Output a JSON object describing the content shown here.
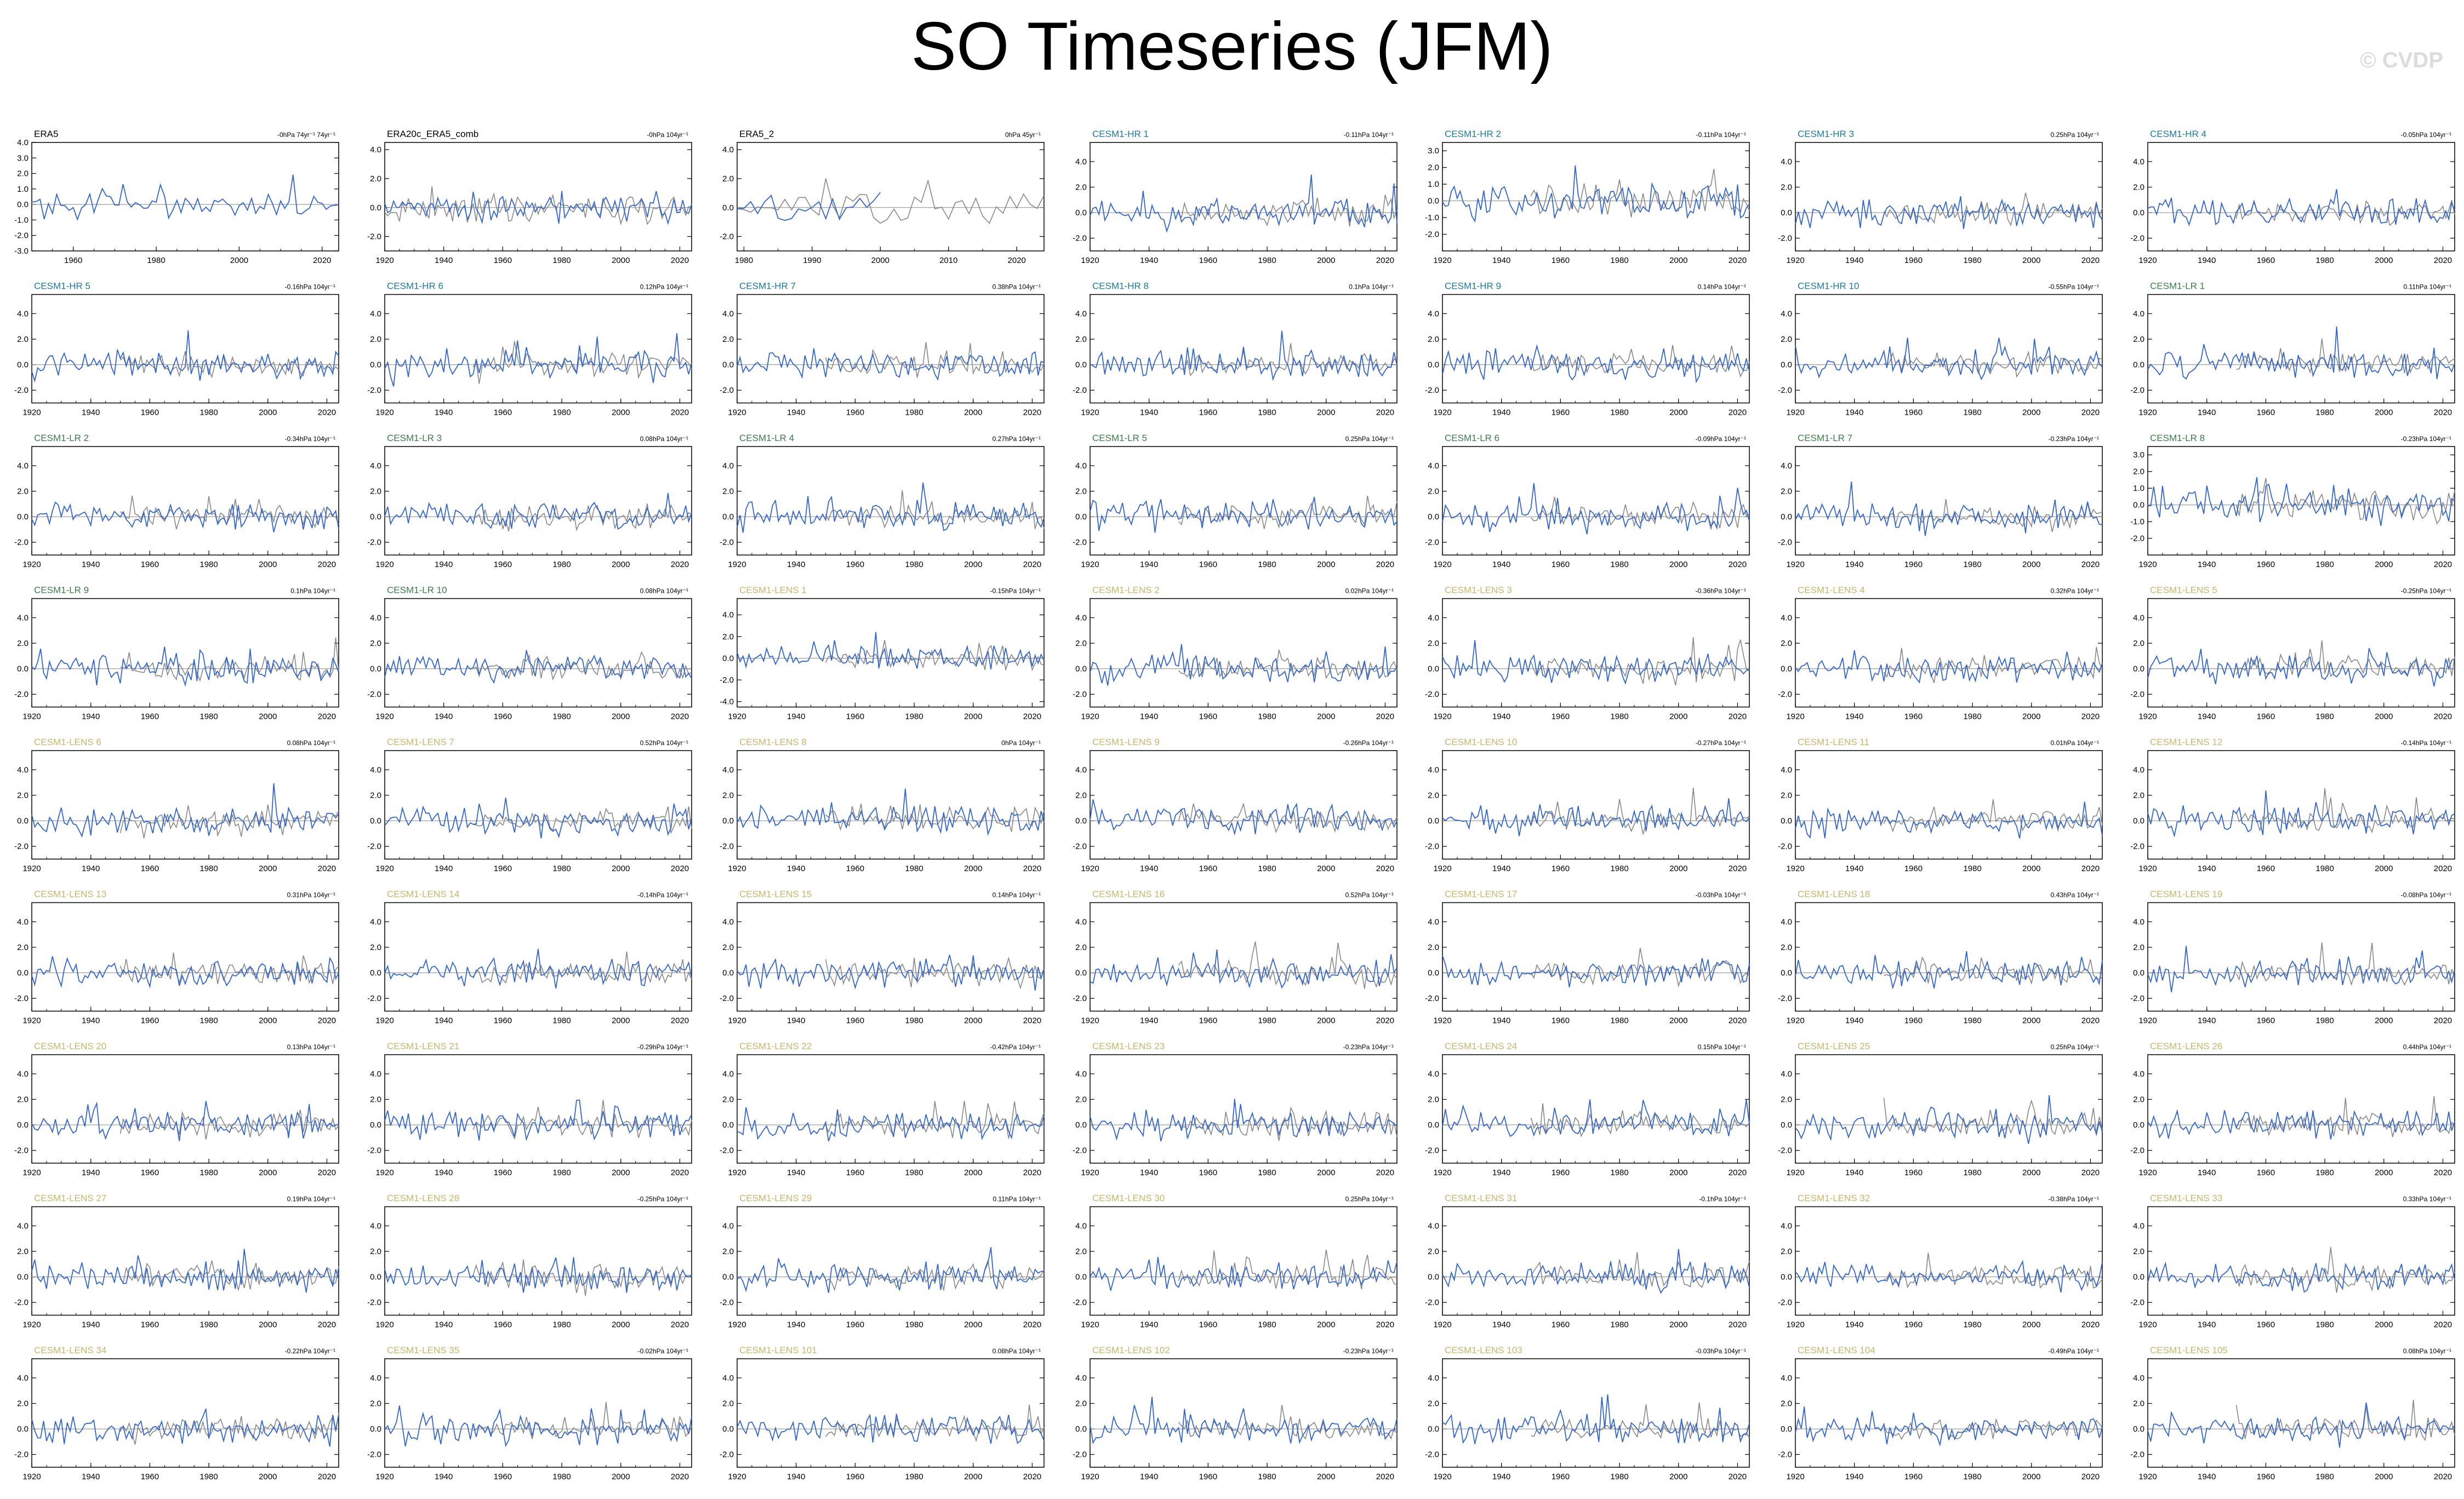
{
  "title": "SO Timeseries (JFM)",
  "watermark": "© CVDP",
  "colors": {
    "model_line": "#3366cc",
    "obs_line": "#888888",
    "zero_line": "#888888",
    "obs_label": "#000000",
    "hr_label": "#1b7a99",
    "lr_label": "#3c7d4b",
    "lens_label": "#c9b66b"
  },
  "chart_data": [
    {
      "title": "ERA5",
      "group": "obs",
      "annotation": "-0hPa 74yr⁻¹ 74yr⁻¹",
      "type": "line",
      "xlim": [
        1950,
        2024
      ],
      "ylim": [
        -3,
        4
      ],
      "yticks": [
        "4.0",
        "3.0",
        "2.0",
        "1.0",
        "0.0",
        "-1.0",
        "-2.0",
        "-3.0"
      ],
      "yvals": [
        4,
        3,
        2,
        1,
        0,
        -1,
        -2,
        -3
      ],
      "xticks": [
        1960,
        1980,
        2000,
        2020
      ]
    },
    {
      "title": "ERA20c_ERA5_comb",
      "group": "obs",
      "annotation": "-0hPa 104yr⁻¹",
      "type": "line",
      "xlim": [
        1920,
        2024
      ],
      "ylim": [
        -3,
        4.5
      ],
      "yticks": [
        "4.0",
        "2.0",
        "0.0",
        "-2.0"
      ],
      "yvals": [
        4,
        2,
        0,
        -2
      ],
      "xticks": [
        1920,
        1940,
        1960,
        1980,
        2000,
        2020
      ]
    },
    {
      "title": "ERA5_2",
      "group": "obs",
      "annotation": "0hPa 45yr⁻¹",
      "type": "line",
      "xlim": [
        1979,
        2024
      ],
      "ylim": [
        -3,
        4.5
      ],
      "yticks": [
        "4.0",
        "2.0",
        "0.0",
        "-2.0"
      ],
      "yvals": [
        4,
        2,
        0,
        -2
      ],
      "xticks": [
        1980,
        1990,
        2000,
        2010,
        2020
      ]
    },
    {
      "title": "CESM1-HR 1",
      "group": "hr",
      "annotation": "-0.11hPa 104yr⁻¹"
    },
    {
      "title": "CESM1-HR 2",
      "group": "hr",
      "annotation": "-0.11hPa 104yr⁻¹",
      "yticks": [
        "3.0",
        "2.0",
        "1.0",
        "0.0",
        "-1.0",
        "-2.0"
      ],
      "yvals": [
        3,
        2,
        1,
        0,
        -1,
        -2
      ],
      "ylim": [
        -3,
        3.5
      ]
    },
    {
      "title": "CESM1-HR 3",
      "group": "hr",
      "annotation": "0.25hPa 104yr⁻¹"
    },
    {
      "title": "CESM1-HR 4",
      "group": "hr",
      "annotation": "-0.05hPa 104yr⁻¹"
    },
    {
      "title": "CESM1-HR 5",
      "group": "hr",
      "annotation": "-0.16hPa 104yr⁻¹"
    },
    {
      "title": "CESM1-HR 6",
      "group": "hr",
      "annotation": "0.12hPa 104yr⁻¹"
    },
    {
      "title": "CESM1-HR 7",
      "group": "hr",
      "annotation": "0.38hPa 104yr⁻¹"
    },
    {
      "title": "CESM1-HR 8",
      "group": "hr",
      "annotation": "0.1hPa 104yr⁻¹"
    },
    {
      "title": "CESM1-HR 9",
      "group": "hr",
      "annotation": "0.14hPa 104yr⁻¹"
    },
    {
      "title": "CESM1-HR 10",
      "group": "hr",
      "annotation": "-0.55hPa 104yr⁻¹"
    },
    {
      "title": "CESM1-LR 1",
      "group": "lr",
      "annotation": "0.11hPa 104yr⁻¹"
    },
    {
      "title": "CESM1-LR 2",
      "group": "lr",
      "annotation": "-0.34hPa 104yr⁻¹"
    },
    {
      "title": "CESM1-LR 3",
      "group": "lr",
      "annotation": "0.08hPa 104yr⁻¹"
    },
    {
      "title": "CESM1-LR 4",
      "group": "lr",
      "annotation": "0.27hPa 104yr⁻¹"
    },
    {
      "title": "CESM1-LR 5",
      "group": "lr",
      "annotation": "0.25hPa 104yr⁻¹"
    },
    {
      "title": "CESM1-LR 6",
      "group": "lr",
      "annotation": "-0.09hPa 104yr⁻¹"
    },
    {
      "title": "CESM1-LR 7",
      "group": "lr",
      "annotation": "-0.23hPa 104yr⁻¹"
    },
    {
      "title": "CESM1-LR 8",
      "group": "lr",
      "annotation": "-0.23hPa 104yr⁻¹",
      "yticks": [
        "3.0",
        "2.0",
        "1.0",
        "0.0",
        "-1.0",
        "-2.0"
      ],
      "yvals": [
        3,
        2,
        1,
        0,
        -1,
        -2
      ],
      "ylim": [
        -3,
        3.5
      ]
    },
    {
      "title": "CESM1-LR 9",
      "group": "lr",
      "annotation": "0.1hPa 104yr⁻¹"
    },
    {
      "title": "CESM1-LR 10",
      "group": "lr",
      "annotation": "0.08hPa 104yr⁻¹"
    },
    {
      "title": "CESM1-LENS 1",
      "group": "lens",
      "annotation": "-0.15hPa 104yr⁻¹",
      "yticks": [
        "4.0",
        "2.0",
        "0.0",
        "-2.0",
        "-4.0"
      ],
      "yvals": [
        4,
        2,
        0,
        -2,
        -4
      ],
      "ylim": [
        -4.5,
        5.5
      ]
    },
    {
      "title": "CESM1-LENS 2",
      "group": "lens",
      "annotation": "0.02hPa 104yr⁻¹"
    },
    {
      "title": "CESM1-LENS 3",
      "group": "lens",
      "annotation": "-0.36hPa 104yr⁻¹"
    },
    {
      "title": "CESM1-LENS 4",
      "group": "lens",
      "annotation": "0.32hPa 104yr⁻¹"
    },
    {
      "title": "CESM1-LENS 5",
      "group": "lens",
      "annotation": "-0.25hPa 104yr⁻¹"
    },
    {
      "title": "CESM1-LENS 6",
      "group": "lens",
      "annotation": "0.08hPa 104yr⁻¹"
    },
    {
      "title": "CESM1-LENS 7",
      "group": "lens",
      "annotation": "0.52hPa 104yr⁻¹"
    },
    {
      "title": "CESM1-LENS 8",
      "group": "lens",
      "annotation": "0hPa 104yr⁻¹"
    },
    {
      "title": "CESM1-LENS 9",
      "group": "lens",
      "annotation": "-0.26hPa 104yr⁻¹"
    },
    {
      "title": "CESM1-LENS 10",
      "group": "lens",
      "annotation": "-0.27hPa 104yr⁻¹"
    },
    {
      "title": "CESM1-LENS 11",
      "group": "lens",
      "annotation": "0.01hPa 104yr⁻¹"
    },
    {
      "title": "CESM1-LENS 12",
      "group": "lens",
      "annotation": "-0.14hPa 104yr⁻¹"
    },
    {
      "title": "CESM1-LENS 13",
      "group": "lens",
      "annotation": "0.31hPa 104yr⁻¹"
    },
    {
      "title": "CESM1-LENS 14",
      "group": "lens",
      "annotation": "-0.14hPa 104yr⁻¹"
    },
    {
      "title": "CESM1-LENS 15",
      "group": "lens",
      "annotation": "0.14hPa 104yr⁻¹"
    },
    {
      "title": "CESM1-LENS 16",
      "group": "lens",
      "annotation": "0.52hPa 104yr⁻¹"
    },
    {
      "title": "CESM1-LENS 17",
      "group": "lens",
      "annotation": "-0.03hPa 104yr⁻¹"
    },
    {
      "title": "CESM1-LENS 18",
      "group": "lens",
      "annotation": "0.43hPa 104yr⁻¹"
    },
    {
      "title": "CESM1-LENS 19",
      "group": "lens",
      "annotation": "-0.08hPa 104yr⁻¹"
    },
    {
      "title": "CESM1-LENS 20",
      "group": "lens",
      "annotation": "0.13hPa 104yr⁻¹"
    },
    {
      "title": "CESM1-LENS 21",
      "group": "lens",
      "annotation": "-0.29hPa 104yr⁻¹"
    },
    {
      "title": "CESM1-LENS 22",
      "group": "lens",
      "annotation": "-0.42hPa 104yr⁻¹"
    },
    {
      "title": "CESM1-LENS 23",
      "group": "lens",
      "annotation": "-0.23hPa 104yr⁻¹"
    },
    {
      "title": "CESM1-LENS 24",
      "group": "lens",
      "annotation": "0.15hPa 104yr⁻¹"
    },
    {
      "title": "CESM1-LENS 25",
      "group": "lens",
      "annotation": "0.25hPa 104yr⁻¹"
    },
    {
      "title": "CESM1-LENS 26",
      "group": "lens",
      "annotation": "0.44hPa 104yr⁻¹"
    },
    {
      "title": "CESM1-LENS 27",
      "group": "lens",
      "annotation": "0.19hPa 104yr⁻¹"
    },
    {
      "title": "CESM1-LENS 28",
      "group": "lens",
      "annotation": "-0.25hPa 104yr⁻¹"
    },
    {
      "title": "CESM1-LENS 29",
      "group": "lens",
      "annotation": "0.11hPa 104yr⁻¹"
    },
    {
      "title": "CESM1-LENS 30",
      "group": "lens",
      "annotation": "0.25hPa 104yr⁻¹"
    },
    {
      "title": "CESM1-LENS 31",
      "group": "lens",
      "annotation": "-0.1hPa 104yr⁻¹"
    },
    {
      "title": "CESM1-LENS 32",
      "group": "lens",
      "annotation": "-0.38hPa 104yr⁻¹"
    },
    {
      "title": "CESM1-LENS 33",
      "group": "lens",
      "annotation": "0.33hPa 104yr⁻¹"
    },
    {
      "title": "CESM1-LENS 34",
      "group": "lens",
      "annotation": "-0.22hPa 104yr⁻¹"
    },
    {
      "title": "CESM1-LENS 35",
      "group": "lens",
      "annotation": "-0.02hPa 104yr⁻¹"
    },
    {
      "title": "CESM1-LENS 101",
      "group": "lens",
      "annotation": "0.08hPa 104yr⁻¹"
    },
    {
      "title": "CESM1-LENS 102",
      "group": "lens",
      "annotation": "-0.23hPa 104yr⁻¹"
    },
    {
      "title": "CESM1-LENS 103",
      "group": "lens",
      "annotation": "-0.03hPa 104yr⁻¹"
    },
    {
      "title": "CESM1-LENS 104",
      "group": "lens",
      "annotation": "-0.49hPa 104yr⁻¹"
    },
    {
      "title": "CESM1-LENS 105",
      "group": "lens",
      "annotation": "0.08hPa 104yr⁻¹"
    }
  ],
  "defaults": {
    "type": "line",
    "xlim": [
      1920,
      2024
    ],
    "ylim": [
      -3,
      5.5
    ],
    "yticks": [
      "4.0",
      "2.0",
      "0.0",
      "-2.0"
    ],
    "yvals": [
      4,
      2,
      0,
      -2
    ],
    "xticks": [
      1920,
      1940,
      1960,
      1980,
      2000,
      2020
    ]
  }
}
